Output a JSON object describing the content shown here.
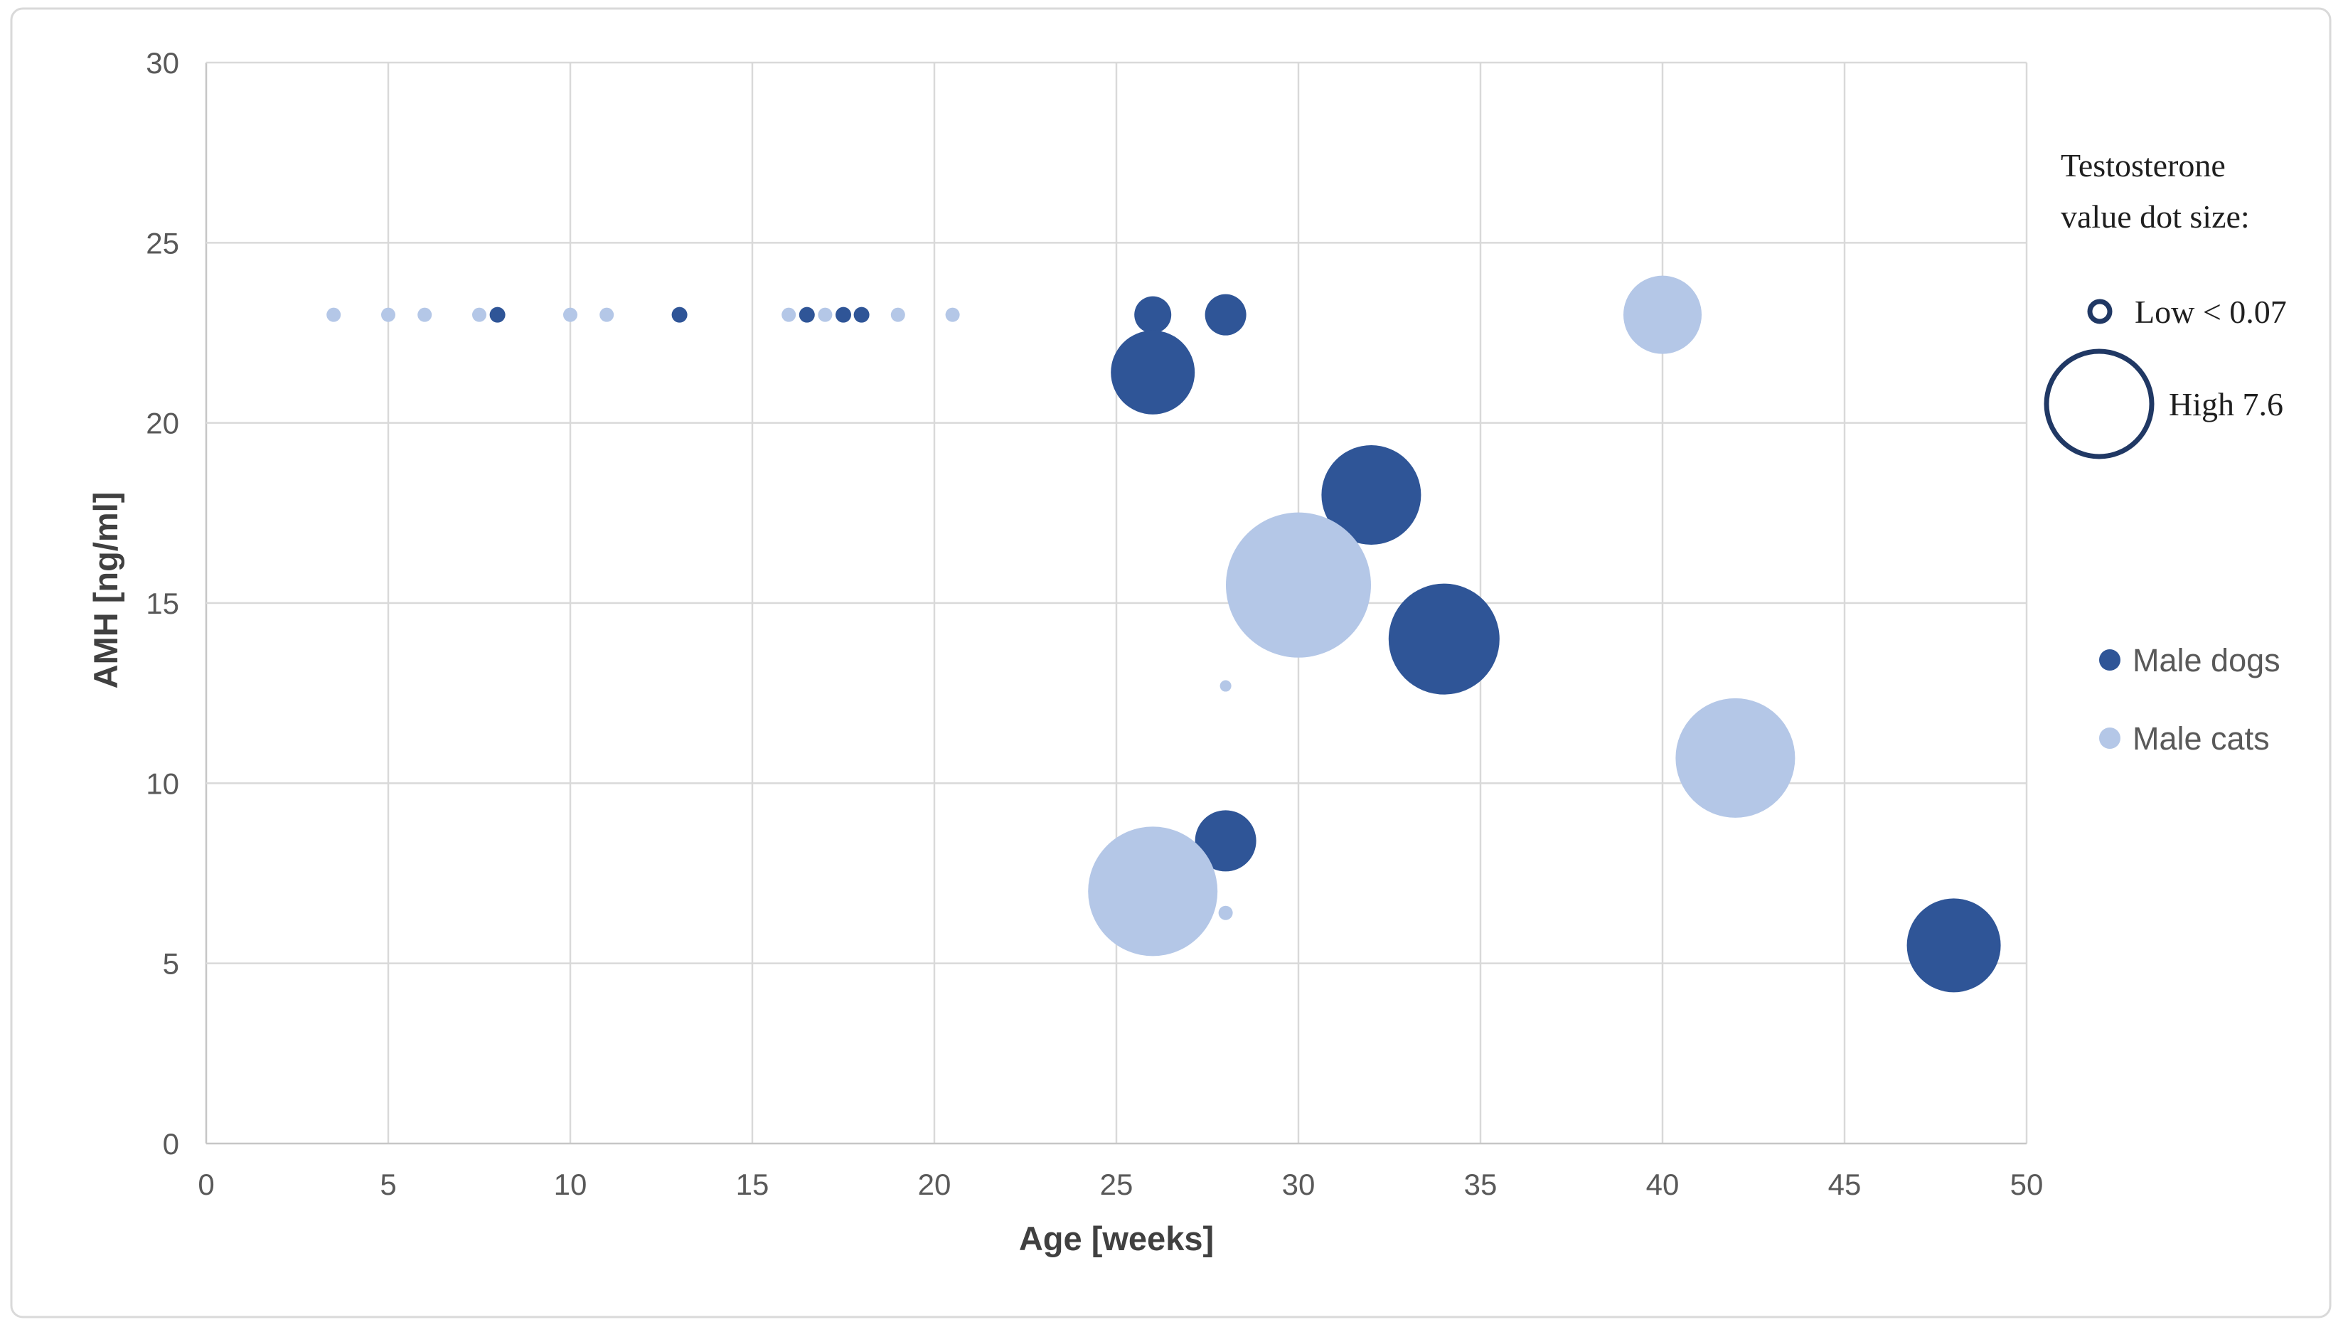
{
  "figure": {
    "background": "#ffffff",
    "border_color": "#d9d9d9"
  },
  "axes": {
    "x": {
      "label": "Age [weeks]",
      "min": 0,
      "max": 50,
      "ticks": [
        0,
        5,
        10,
        15,
        20,
        25,
        30,
        35,
        40,
        45,
        50
      ]
    },
    "y": {
      "label": "AMH [ng/ml]",
      "min": 0,
      "max": 30,
      "ticks": [
        0,
        5,
        10,
        15,
        20,
        25,
        30
      ]
    },
    "tick_color": "#595959",
    "title_color": "#404040",
    "grid_color": "#d9d9d9",
    "axis_line_color": "#c6c6c6"
  },
  "size_legend": {
    "title_line1": "Testosterone",
    "title_line2": "value dot size:",
    "low_label": "Low < 0.07",
    "high_label": "High 7.6",
    "outline_color": "#203864",
    "low_radius": 14,
    "high_radius": 74
  },
  "series_legend": {
    "items": [
      {
        "label": "Male dogs",
        "color": "#2F5597"
      },
      {
        "label": "Male cats",
        "color": "#B4C7E7"
      }
    ]
  },
  "chart_data": {
    "type": "scatter",
    "subtype": "bubble",
    "title": "",
    "xlabel": "Age [weeks]",
    "ylabel": "AMH [ng/ml]",
    "xlim": [
      0,
      50
    ],
    "ylim": [
      0,
      30
    ],
    "grid": true,
    "legend_position": "right",
    "size_encoding": {
      "variable": "Testosterone",
      "low": "< 0.07",
      "high": 7.6
    },
    "size_hint": "r = bubble radius in canvas px (3302px wide canvas); bubble area encodes testosterone value",
    "series": [
      {
        "name": "Male dogs",
        "color": "#2F5597",
        "points": [
          {
            "x": 8,
            "y": 23,
            "r": 11
          },
          {
            "x": 13,
            "y": 23,
            "r": 11
          },
          {
            "x": 16.5,
            "y": 23,
            "r": 11
          },
          {
            "x": 17.5,
            "y": 23,
            "r": 11
          },
          {
            "x": 18,
            "y": 23,
            "r": 11
          },
          {
            "x": 26,
            "y": 23,
            "r": 26
          },
          {
            "x": 28,
            "y": 23,
            "r": 29
          },
          {
            "x": 26,
            "y": 21.4,
            "r": 59
          },
          {
            "x": 32,
            "y": 18,
            "r": 70
          },
          {
            "x": 34,
            "y": 14,
            "r": 78
          },
          {
            "x": 28,
            "y": 8.4,
            "r": 43
          },
          {
            "x": 48,
            "y": 5.5,
            "r": 66
          }
        ]
      },
      {
        "name": "Male cats",
        "color": "#B4C7E7",
        "points": [
          {
            "x": 3.5,
            "y": 23,
            "r": 10
          },
          {
            "x": 5,
            "y": 23,
            "r": 10
          },
          {
            "x": 6,
            "y": 23,
            "r": 10
          },
          {
            "x": 7.5,
            "y": 23,
            "r": 10
          },
          {
            "x": 10,
            "y": 23,
            "r": 10
          },
          {
            "x": 11,
            "y": 23,
            "r": 10
          },
          {
            "x": 16,
            "y": 23,
            "r": 10
          },
          {
            "x": 17,
            "y": 23,
            "r": 10
          },
          {
            "x": 19,
            "y": 23,
            "r": 10
          },
          {
            "x": 20.5,
            "y": 23,
            "r": 10
          },
          {
            "x": 28,
            "y": 12.7,
            "r": 8
          },
          {
            "x": 30,
            "y": 15.5,
            "r": 102
          },
          {
            "x": 26,
            "y": 7,
            "r": 91
          },
          {
            "x": 28,
            "y": 6.4,
            "r": 10
          },
          {
            "x": 40,
            "y": 23,
            "r": 55
          },
          {
            "x": 42,
            "y": 10.7,
            "r": 84
          }
        ]
      }
    ]
  }
}
